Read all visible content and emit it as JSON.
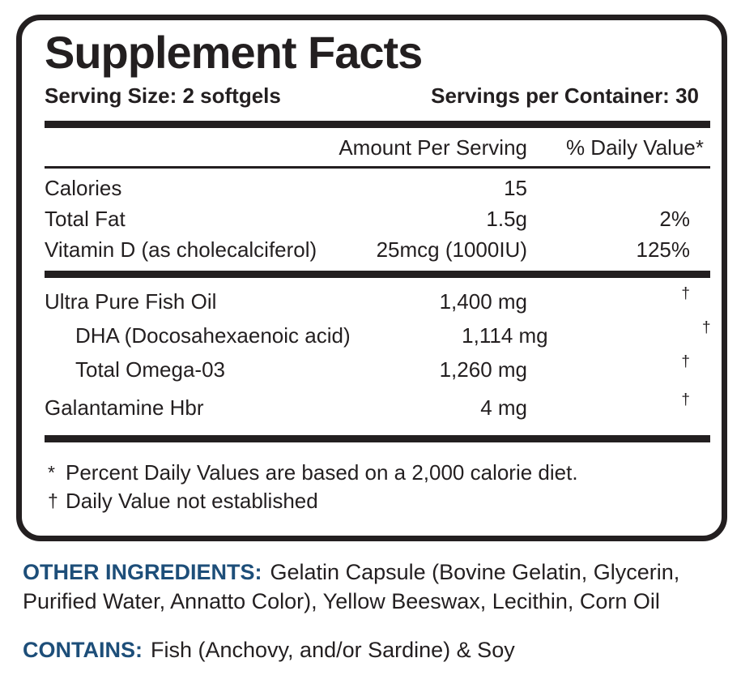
{
  "colors": {
    "text": "#231f20",
    "accent_blue": "#1d4e79",
    "background": "#ffffff"
  },
  "panel": {
    "title": "Supplement Facts",
    "serving_size": "Serving Size: 2 softgels",
    "servings_per_container": "Servings per Container: 30",
    "columns": {
      "amount": "Amount Per Serving",
      "daily_value": "% Daily Value*"
    },
    "rows": [
      {
        "name": "Calories",
        "amount": "15",
        "dv": ""
      },
      {
        "name": "Total Fat",
        "amount": "1.5g",
        "dv": "2%"
      },
      {
        "name": "Vitamin D (as cholecalciferol)",
        "amount": "25mcg (1000IU)",
        "dv": "125%"
      },
      {
        "name": "Ultra Pure Fish Oil",
        "amount": "1,400 mg",
        "dv": "†"
      },
      {
        "name": "DHA (Docosahexaenoic acid)",
        "amount": "1,114 mg",
        "dv": "†"
      },
      {
        "name": "Total Omega-03",
        "amount": "1,260 mg",
        "dv": "†"
      },
      {
        "name": "Galantamine Hbr",
        "amount": "4 mg",
        "dv": "†"
      }
    ],
    "footnotes": [
      {
        "marker": "*",
        "text": "Percent Daily Values are based on a 2,000 calorie diet."
      },
      {
        "marker": "†",
        "text": "Daily Value not established"
      }
    ]
  },
  "other_ingredients": {
    "label": "OTHER INGREDIENTS:",
    "text": "Gelatin Capsule (Bovine Gelatin, Glycerin, Purified Water, Annatto Color), Yellow Beeswax, Lecithin, Corn Oil"
  },
  "contains": {
    "label": "CONTAINS:",
    "text": "Fish (Anchovy, and/or Sardine) & Soy"
  }
}
